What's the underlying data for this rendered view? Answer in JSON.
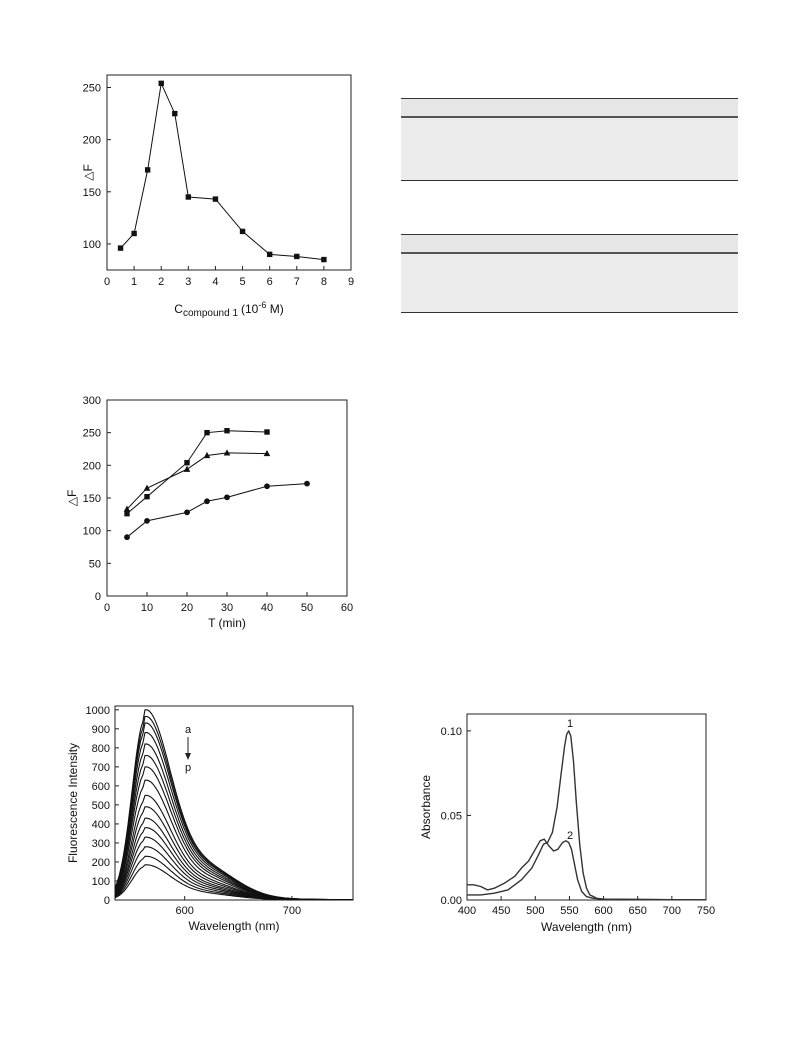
{
  "chart_data": [
    {
      "type": "line",
      "title": "",
      "xlabel": "C",
      "xlabel_sub": "compound 1",
      "xlabel_unit_pre": "(10",
      "xlabel_unit_sup": "-6",
      "xlabel_unit_post": " M)",
      "ylabel": "△F",
      "xlim": [
        0,
        9
      ],
      "ylim": [
        75,
        262
      ],
      "xticks": [
        "0",
        "1",
        "2",
        "3",
        "4",
        "5",
        "6",
        "7",
        "8",
        "9"
      ],
      "yticks": [
        "100",
        "150",
        "200",
        "250"
      ],
      "series": [
        {
          "marker": "square",
          "x": [
            0.5,
            1,
            1.5,
            2,
            2.5,
            3,
            4,
            5,
            6,
            7,
            8
          ],
          "y": [
            96,
            110,
            171,
            254,
            225,
            145,
            143,
            112,
            90,
            88,
            85
          ]
        }
      ]
    },
    {
      "type": "line",
      "title": "",
      "xlabel": "T (min)",
      "ylabel": "△F",
      "xlim": [
        0,
        60
      ],
      "ylim": [
        0,
        300
      ],
      "xticks": [
        "0",
        "10",
        "20",
        "30",
        "40",
        "50",
        "60"
      ],
      "yticks": [
        "0",
        "50",
        "100",
        "150",
        "200",
        "250",
        "300"
      ],
      "series": [
        {
          "marker": "square",
          "x": [
            5,
            10,
            20,
            25,
            30,
            40
          ],
          "y": [
            126,
            152,
            204,
            250,
            253,
            251
          ]
        },
        {
          "marker": "triangle",
          "x": [
            5,
            10,
            20,
            25,
            30,
            40
          ],
          "y": [
            133,
            165,
            194,
            215,
            219,
            218
          ]
        },
        {
          "marker": "circle",
          "x": [
            5,
            10,
            20,
            25,
            30,
            40,
            50
          ],
          "y": [
            90,
            115,
            128,
            145,
            151,
            168,
            172
          ]
        }
      ]
    },
    {
      "type": "line",
      "title": "",
      "xlabel": "Wavelength (nm)",
      "ylabel": "Fluorescence Intensity",
      "xlim": [
        535,
        757
      ],
      "ylim": [
        0,
        1020
      ],
      "xticks": [
        "600",
        "700"
      ],
      "yticks": [
        "0",
        "100",
        "200",
        "300",
        "400",
        "500",
        "600",
        "700",
        "800",
        "900",
        "1000"
      ],
      "peak_x": 563,
      "peaks": [
        1000,
        965,
        930,
        880,
        820,
        760,
        700,
        630,
        550,
        490,
        430,
        380,
        330,
        280,
        230,
        185
      ],
      "annotation_top": "a",
      "annotation_bottom": "p"
    },
    {
      "type": "line",
      "title": "",
      "xlabel": "Wavelength (nm)",
      "ylabel": "Absorbance",
      "xlim": [
        400,
        750
      ],
      "ylim": [
        0,
        0.11
      ],
      "xticks": [
        "400",
        "450",
        "500",
        "550",
        "600",
        "650",
        "700",
        "750"
      ],
      "yticks": [
        "0.00",
        "0.05",
        "0.10"
      ],
      "series": [
        {
          "name": "1",
          "x": [
            400,
            420,
            440,
            460,
            480,
            495,
            505,
            512,
            518,
            525,
            532,
            538,
            543,
            546,
            549,
            552,
            556,
            560,
            565,
            570,
            575,
            580,
            590,
            600,
            650,
            700,
            750
          ],
          "y": [
            0.003,
            0.003,
            0.004,
            0.006,
            0.012,
            0.019,
            0.027,
            0.033,
            0.034,
            0.04,
            0.055,
            0.075,
            0.091,
            0.098,
            0.1,
            0.097,
            0.082,
            0.058,
            0.033,
            0.016,
            0.007,
            0.003,
            0.001,
            0.0005,
            0.0003,
            0.0002,
            0.0001
          ]
        },
        {
          "name": "2",
          "x": [
            400,
            410,
            420,
            430,
            440,
            455,
            470,
            480,
            490,
            500,
            507,
            513,
            520,
            527,
            533,
            540,
            545,
            549,
            553,
            557,
            562,
            568,
            575,
            585,
            600,
            650,
            700,
            750
          ],
          "y": [
            0.009,
            0.009,
            0.008,
            0.006,
            0.007,
            0.01,
            0.014,
            0.019,
            0.023,
            0.03,
            0.035,
            0.036,
            0.032,
            0.029,
            0.03,
            0.034,
            0.035,
            0.034,
            0.03,
            0.022,
            0.012,
            0.005,
            0.002,
            0.001,
            0.0005,
            0.0003,
            0.0002,
            0.0001
          ]
        }
      ],
      "annotations": [
        "1",
        "2"
      ]
    }
  ],
  "colors": {
    "line": "#111111",
    "frame": "#222222",
    "table_fill": "#e8e8e8"
  }
}
